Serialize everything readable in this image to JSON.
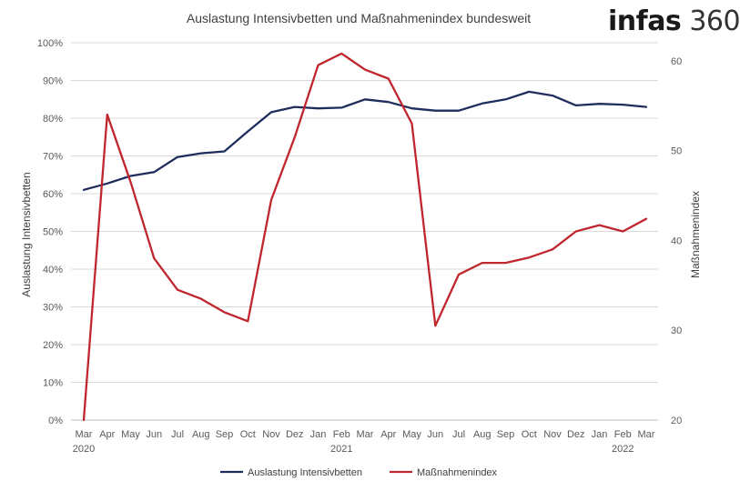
{
  "logo": {
    "bold": "infas",
    "thin": "360"
  },
  "chart_data": {
    "type": "line",
    "title": "Auslastung Intensivbetten und Maßnahmenindex bundesweit",
    "ylabel_left": "Auslastung Intensivbetten",
    "ylabel_right": "Maßnahmenindex",
    "xlabel": "",
    "grid": true,
    "legend_position": "bottom",
    "categories": [
      "Mar",
      "Apr",
      "May",
      "Jun",
      "Jul",
      "Aug",
      "Sep",
      "Oct",
      "Nov",
      "Dez",
      "Jan",
      "Feb",
      "Mar",
      "Apr",
      "May",
      "Jun",
      "Jul",
      "Aug",
      "Sep",
      "Oct",
      "Nov",
      "Dez",
      "Jan",
      "Feb",
      "Mar"
    ],
    "year_labels": [
      {
        "index": 0,
        "label": "2020"
      },
      {
        "index": 11,
        "label": "2021"
      },
      {
        "index": 23,
        "label": "2022"
      }
    ],
    "left_axis": {
      "ylim": [
        0,
        100
      ],
      "ticks": [
        0,
        10,
        20,
        30,
        40,
        50,
        60,
        70,
        80,
        90,
        100
      ],
      "tick_labels": [
        "0%",
        "10%",
        "20%",
        "30%",
        "40%",
        "50%",
        "60%",
        "70%",
        "80%",
        "90%",
        "100%"
      ]
    },
    "right_axis": {
      "ylim": [
        20,
        62
      ],
      "ticks": [
        20,
        30,
        40,
        50,
        60
      ],
      "tick_labels": [
        "20",
        "30",
        "40",
        "50",
        "60"
      ]
    },
    "series": [
      {
        "name": "Auslastung Intensivbetten",
        "axis": "left",
        "color": "#1f2d5c",
        "values": [
          61,
          62.7,
          64.7,
          65.7,
          69.7,
          70.7,
          71.2,
          76.5,
          81.6,
          83,
          82.6,
          82.8,
          85,
          84.3,
          82.6,
          82,
          82,
          83.9,
          85,
          87,
          86,
          83.4,
          83.8,
          83.6,
          83
        ]
      },
      {
        "name": "Maßnahmenindex",
        "axis": "right",
        "color": "#c0262d",
        "values": [
          20,
          54,
          46.5,
          38,
          34.5,
          33.5,
          32,
          31,
          44.5,
          51.5,
          59.5,
          60.8,
          59,
          58,
          53,
          30.5,
          36.2,
          37.5,
          37.5,
          38.1,
          39,
          41,
          41.7,
          41,
          42.4
        ]
      }
    ]
  }
}
